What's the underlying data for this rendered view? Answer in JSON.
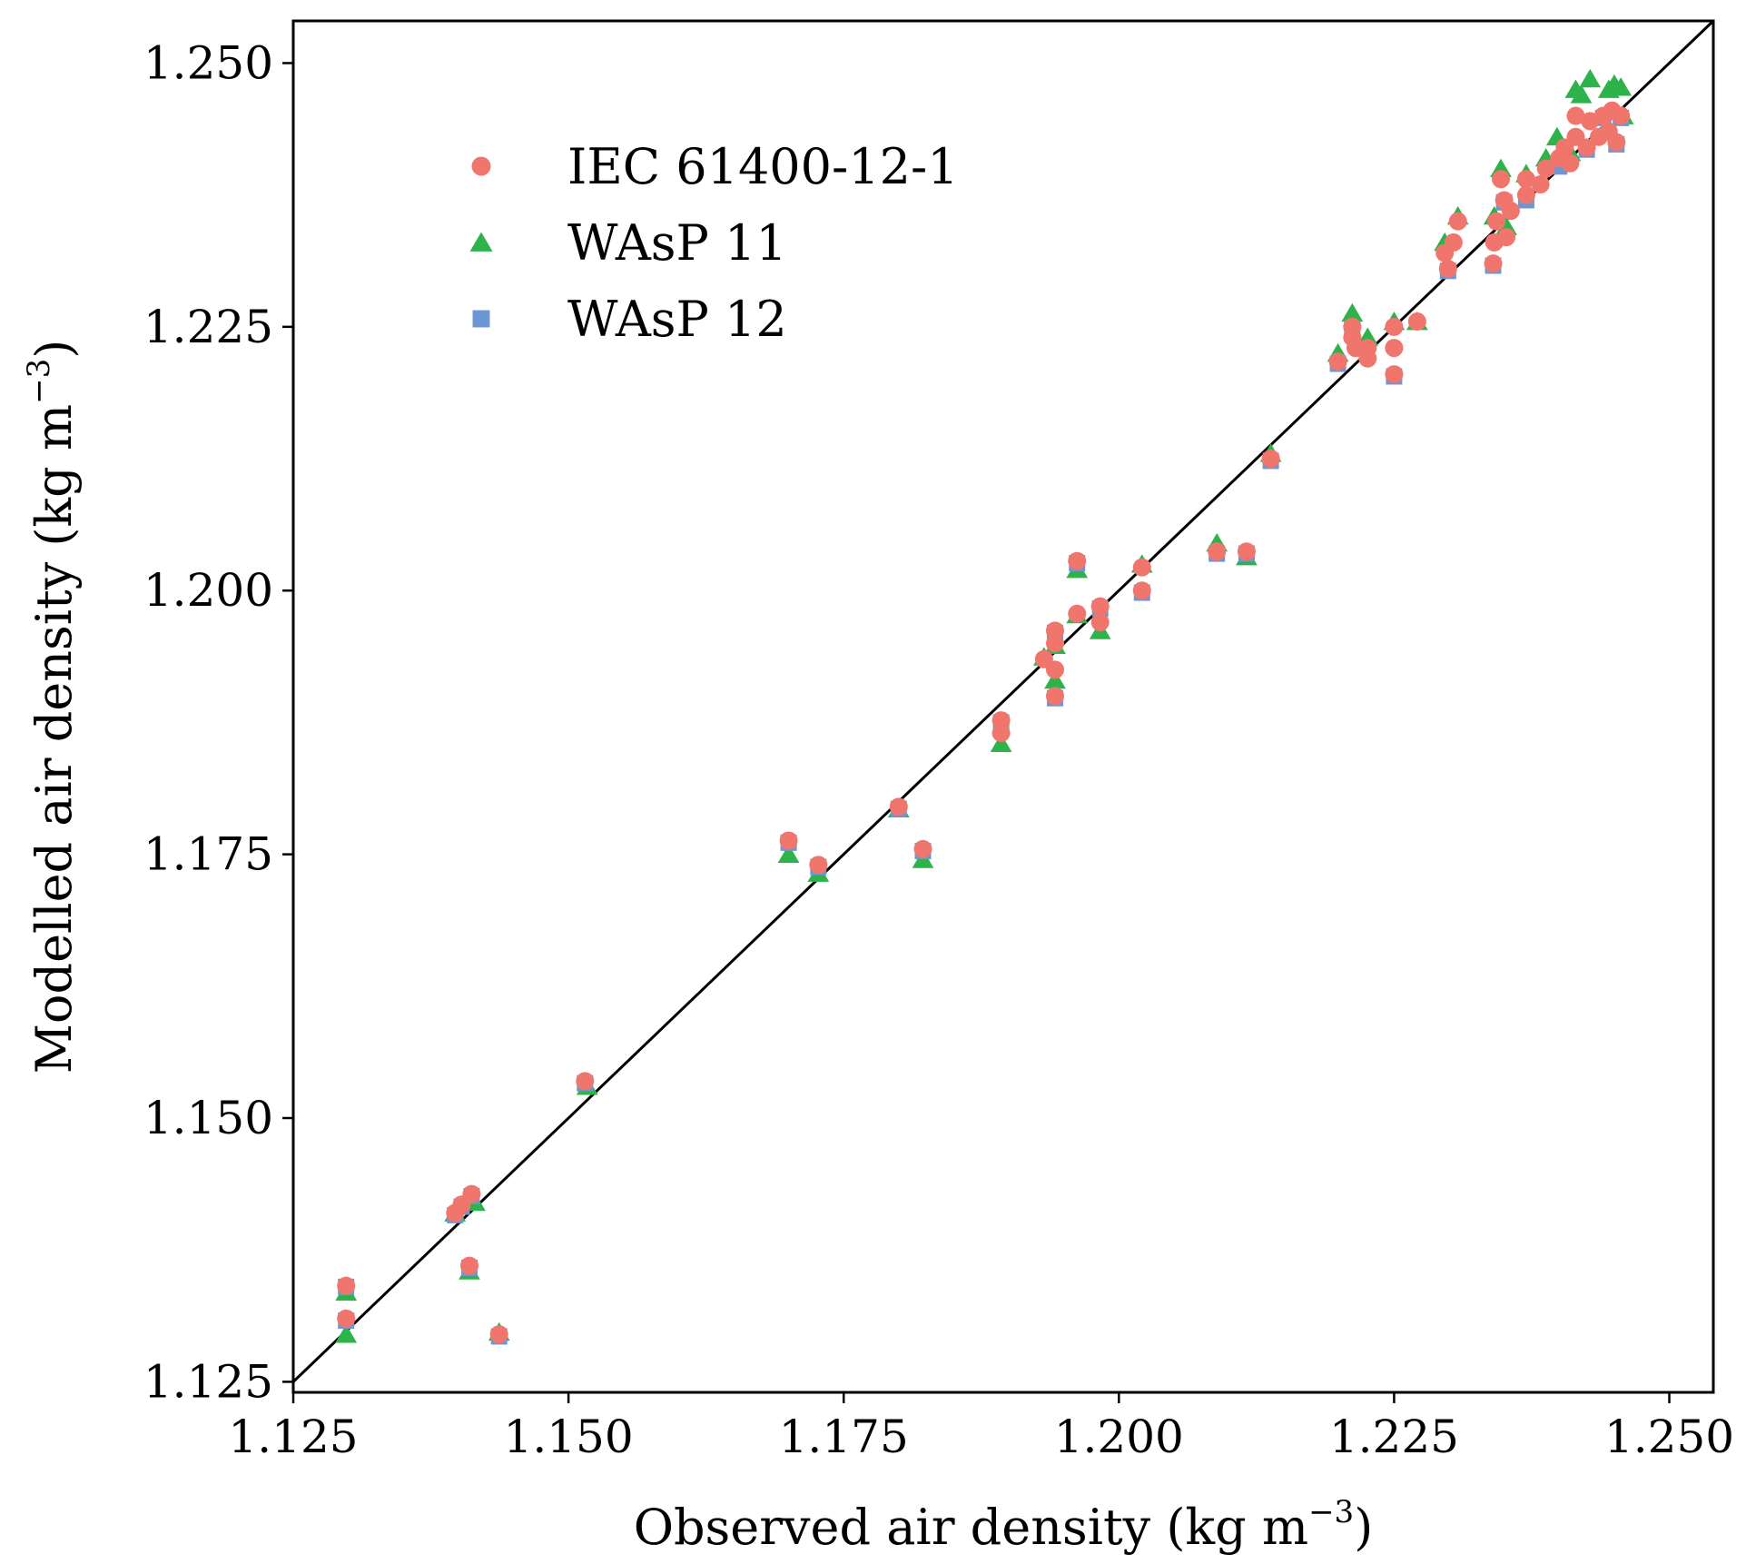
{
  "chart_data": {
    "type": "scatter",
    "xlabel": "Observed air density (kg m",
    "xlabel_exp": "−3",
    "xlabel_close": ")",
    "ylabel": "Modelled air density (kg m",
    "ylabel_exp": "−3",
    "ylabel_close": ")",
    "xlim": [
      1.125,
      1.254
    ],
    "ylim": [
      1.124,
      1.254
    ],
    "xticks": [
      1.125,
      1.15,
      1.175,
      1.2,
      1.225,
      1.25
    ],
    "yticks": [
      1.125,
      1.15,
      1.175,
      1.2,
      1.225,
      1.25
    ],
    "xtick_labels": [
      "1.125",
      "1.150",
      "1.175",
      "1.200",
      "1.225",
      "1.250"
    ],
    "ytick_labels": [
      "1.125",
      "1.150",
      "1.175",
      "1.200",
      "1.225",
      "1.250"
    ],
    "reference_line": "1:1",
    "legend_position": "top-left",
    "grid": false,
    "series": [
      {
        "name": "IEC 61400-12-1",
        "marker": "circle",
        "color": "#f0766d",
        "points": [
          [
            1.1298,
            1.1341
          ],
          [
            1.1298,
            1.131
          ],
          [
            1.1397,
            1.141
          ],
          [
            1.1403,
            1.1418
          ],
          [
            1.1412,
            1.1428
          ],
          [
            1.141,
            1.136
          ],
          [
            1.1437,
            1.1295
          ],
          [
            1.1515,
            1.1535
          ],
          [
            1.17,
            1.1763
          ],
          [
            1.1727,
            1.174
          ],
          [
            1.18,
            1.1795
          ],
          [
            1.1822,
            1.1755
          ],
          [
            1.1893,
            1.1877
          ],
          [
            1.1893,
            1.1865
          ],
          [
            1.1932,
            1.1935
          ],
          [
            1.1942,
            1.1962
          ],
          [
            1.1942,
            1.195
          ],
          [
            1.1942,
            1.1925
          ],
          [
            1.1942,
            1.19
          ],
          [
            1.1962,
            1.2028
          ],
          [
            1.1962,
            1.1978
          ],
          [
            1.1983,
            1.1985
          ],
          [
            1.1983,
            1.197
          ],
          [
            1.2021,
            1.2022
          ],
          [
            1.2021,
            1.2
          ],
          [
            1.2089,
            1.2037
          ],
          [
            1.2116,
            1.2037
          ],
          [
            1.2138,
            1.2125
          ],
          [
            1.2199,
            1.2217
          ],
          [
            1.2212,
            1.225
          ],
          [
            1.2212,
            1.224
          ],
          [
            1.2215,
            1.223
          ],
          [
            1.2226,
            1.223
          ],
          [
            1.2226,
            1.222
          ],
          [
            1.225,
            1.225
          ],
          [
            1.225,
            1.223
          ],
          [
            1.225,
            1.2205
          ],
          [
            1.2271,
            1.2255
          ],
          [
            1.2296,
            1.232
          ],
          [
            1.2299,
            1.2305
          ],
          [
            1.2304,
            1.233
          ],
          [
            1.2308,
            1.235
          ],
          [
            1.234,
            1.231
          ],
          [
            1.2341,
            1.233
          ],
          [
            1.2343,
            1.235
          ],
          [
            1.2347,
            1.239
          ],
          [
            1.235,
            1.237
          ],
          [
            1.2352,
            1.2335
          ],
          [
            1.2356,
            1.236
          ],
          [
            1.237,
            1.2375
          ],
          [
            1.237,
            1.239
          ],
          [
            1.2383,
            1.2385
          ],
          [
            1.2388,
            1.24
          ],
          [
            1.24,
            1.241
          ],
          [
            1.2405,
            1.242
          ],
          [
            1.241,
            1.2405
          ],
          [
            1.2415,
            1.243
          ],
          [
            1.2415,
            1.245
          ],
          [
            1.2425,
            1.242
          ],
          [
            1.2428,
            1.2445
          ],
          [
            1.2436,
            1.243
          ],
          [
            1.244,
            1.245
          ],
          [
            1.2445,
            1.2435
          ],
          [
            1.2448,
            1.2455
          ],
          [
            1.2452,
            1.2425
          ],
          [
            1.2456,
            1.245
          ]
        ]
      },
      {
        "name": "WAsP 11",
        "marker": "triangle",
        "color": "#2eb34a",
        "points": [
          [
            1.1298,
            1.1335
          ],
          [
            1.1298,
            1.1295
          ],
          [
            1.1397,
            1.141
          ],
          [
            1.141,
            1.1355
          ],
          [
            1.1415,
            1.142
          ],
          [
            1.1437,
            1.1297
          ],
          [
            1.1517,
            1.153
          ],
          [
            1.17,
            1.175
          ],
          [
            1.1727,
            1.1732
          ],
          [
            1.18,
            1.1793
          ],
          [
            1.1822,
            1.1745
          ],
          [
            1.1893,
            1.1855
          ],
          [
            1.1932,
            1.1937
          ],
          [
            1.1942,
            1.1915
          ],
          [
            1.1942,
            1.1948
          ],
          [
            1.1962,
            1.202
          ],
          [
            1.1962,
            1.1977
          ],
          [
            1.1983,
            1.1962
          ],
          [
            1.2021,
            1.2025
          ],
          [
            1.2089,
            1.2045
          ],
          [
            1.2116,
            1.2032
          ],
          [
            1.2138,
            1.213
          ],
          [
            1.2199,
            1.2225
          ],
          [
            1.2212,
            1.2263
          ],
          [
            1.2226,
            1.224
          ],
          [
            1.225,
            1.2255
          ],
          [
            1.2271,
            1.2255
          ],
          [
            1.2296,
            1.233
          ],
          [
            1.2308,
            1.2355
          ],
          [
            1.2341,
            1.2355
          ],
          [
            1.2347,
            1.24
          ],
          [
            1.2352,
            1.2345
          ],
          [
            1.237,
            1.2395
          ],
          [
            1.2388,
            1.241
          ],
          [
            1.2398,
            1.243
          ],
          [
            1.241,
            1.2415
          ],
          [
            1.2415,
            1.2475
          ],
          [
            1.242,
            1.247
          ],
          [
            1.2428,
            1.2485
          ],
          [
            1.2445,
            1.2475
          ],
          [
            1.245,
            1.248
          ],
          [
            1.2456,
            1.2477
          ],
          [
            1.2458,
            1.245
          ]
        ]
      },
      {
        "name": "WAsP 12",
        "marker": "square",
        "color": "#6c96d4",
        "points": [
          [
            1.1298,
            1.134
          ],
          [
            1.1298,
            1.1308
          ],
          [
            1.1397,
            1.1408
          ],
          [
            1.1403,
            1.1416
          ],
          [
            1.1412,
            1.1426
          ],
          [
            1.141,
            1.1358
          ],
          [
            1.1437,
            1.1293
          ],
          [
            1.1515,
            1.1533
          ],
          [
            1.17,
            1.1761
          ],
          [
            1.1727,
            1.1738
          ],
          [
            1.18,
            1.1793
          ],
          [
            1.1822,
            1.1753
          ],
          [
            1.1893,
            1.1875
          ],
          [
            1.1942,
            1.1898
          ],
          [
            1.1942,
            1.196
          ],
          [
            1.1962,
            1.2026
          ],
          [
            1.1983,
            1.1983
          ],
          [
            1.2021,
            1.1998
          ],
          [
            1.2089,
            1.2035
          ],
          [
            1.2116,
            1.2035
          ],
          [
            1.2138,
            1.2123
          ],
          [
            1.2199,
            1.2215
          ],
          [
            1.2212,
            1.2248
          ],
          [
            1.225,
            1.2203
          ],
          [
            1.2299,
            1.2303
          ],
          [
            1.234,
            1.2308
          ],
          [
            1.235,
            1.2368
          ],
          [
            1.237,
            1.237
          ],
          [
            1.24,
            1.2402
          ],
          [
            1.2425,
            1.2418
          ],
          [
            1.244,
            1.2448
          ],
          [
            1.2452,
            1.2423
          ],
          [
            1.2456,
            1.2448
          ]
        ]
      }
    ]
  }
}
